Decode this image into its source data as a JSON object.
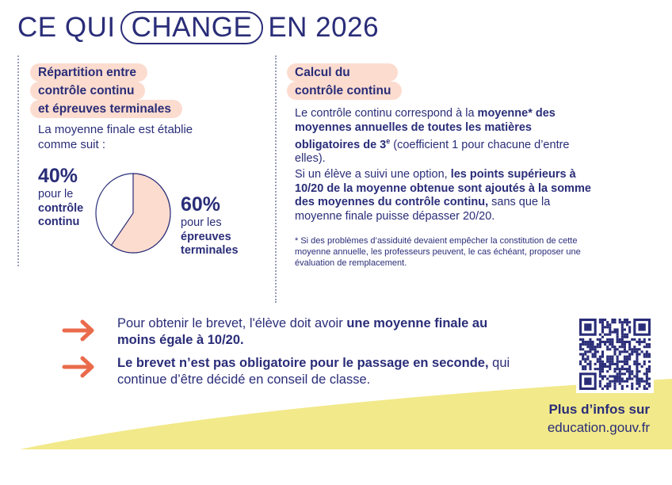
{
  "title": {
    "part1": "CE QUI",
    "highlight": "CHANGE",
    "part2": "EN 2026"
  },
  "left": {
    "heading": [
      "Répartition entre",
      "contrôle continu",
      "et épreuves terminales"
    ],
    "intro": "La moyenne finale est établie comme suit :",
    "cc": {
      "pct": "40%",
      "line1": "pour le",
      "bold": "contrôle continu"
    },
    "et": {
      "pct": "60%",
      "line1": "pour les",
      "bold": "épreuves terminales"
    }
  },
  "chart_data": {
    "type": "pie",
    "slices": [
      {
        "label": "contrôle continu",
        "value": 40
      },
      {
        "label": "épreuves terminales",
        "value": 60
      }
    ],
    "colors": [
      "#ffffff",
      "#fcdccf"
    ]
  },
  "right": {
    "heading": [
      "Calcul du",
      "contrôle continu"
    ],
    "p1": {
      "a": "Le contrôle continu correspond à la ",
      "b": "moyenne* des moyennes annuelles de toutes les matières obligatoires de 3",
      "sup": "e",
      "c": " (coefficient 1 pour chacune d’entre elles)."
    },
    "p2": {
      "a": "Si un élève a suivi une option, ",
      "b": "les points supérieurs à 10/20 de la moyenne obtenue sont ajoutés à la somme des moyennes du contrôle continu,",
      "c": " sans que la moyenne finale puisse dépasser 20/20."
    },
    "note": "* Si des problèmes d’assiduité devaient empêcher la constitution de cette moyenne annuelle, les professeurs peuvent, le cas échéant, proposer une évaluation de remplacement."
  },
  "bullets": [
    {
      "a": "Pour obtenir le brevet, l'élève doit avoir ",
      "b": "une moyenne finale au moins égale à 10/20.",
      "c": ""
    },
    {
      "a": "",
      "b": "Le brevet n’est pas obligatoire pour le passage en seconde,",
      "c": " qui continue d’être décidé en conseil de classe."
    }
  ],
  "more": {
    "line1": "Plus d’infos sur",
    "line2": "education.gouv.fr"
  },
  "colors": {
    "navy": "#2a2d78",
    "peach": "#fcdccf",
    "orange": "#ea6b4c",
    "yellow": "#f2e98a"
  }
}
